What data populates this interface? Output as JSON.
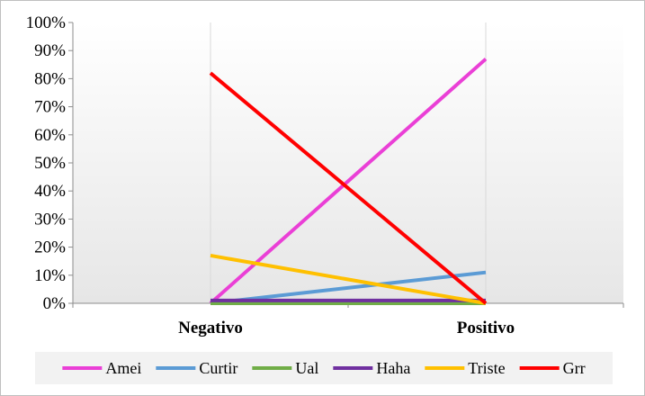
{
  "chart_data": {
    "type": "line",
    "title": "",
    "xlabel": "",
    "ylabel": "",
    "categories": [
      "Negativo",
      "Positivo"
    ],
    "ylim": [
      0,
      100
    ],
    "y_ticks": [
      "0%",
      "10%",
      "20%",
      "30%",
      "40%",
      "50%",
      "60%",
      "70%",
      "80%",
      "90%",
      "100%"
    ],
    "grid": "vertical lines at categories",
    "legend_position": "bottom",
    "series": [
      {
        "name": "Amei",
        "color": "#ea3fd6",
        "values": [
          0,
          87
        ]
      },
      {
        "name": "Curtir",
        "color": "#5b9bd5",
        "values": [
          0,
          11
        ]
      },
      {
        "name": "Ual",
        "color": "#70ad47",
        "values": [
          0,
          0
        ]
      },
      {
        "name": "Haha",
        "color": "#7030a0",
        "values": [
          1,
          1
        ]
      },
      {
        "name": "Triste",
        "color": "#ffc000",
        "values": [
          17,
          0
        ]
      },
      {
        "name": "Grr",
        "color": "#ff0000",
        "values": [
          82,
          0
        ]
      }
    ]
  }
}
